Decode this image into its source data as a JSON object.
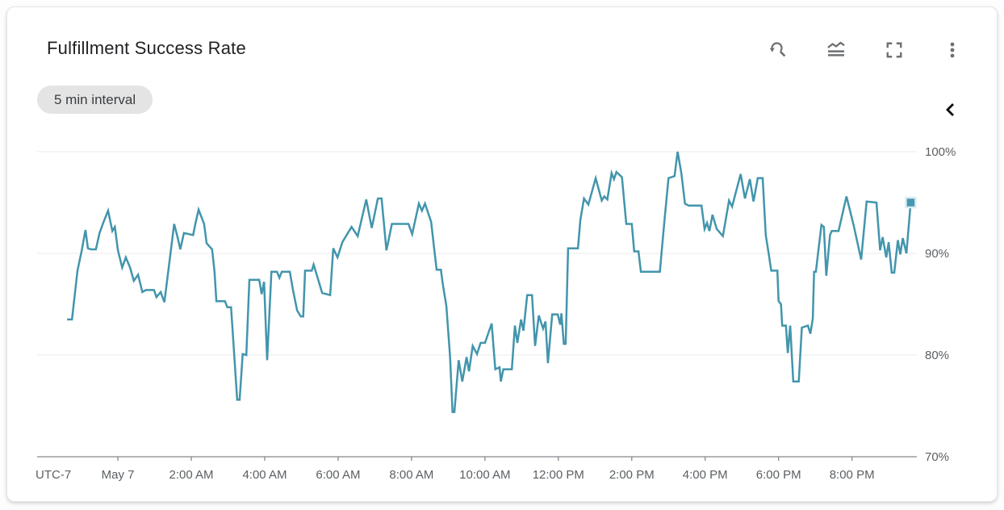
{
  "card": {
    "title": "Fulfillment Success Rate",
    "interval_badge": "5 min interval"
  },
  "toolbar": {
    "buttons": [
      {
        "name": "reset-zoom"
      },
      {
        "name": "legend-toggle"
      },
      {
        "name": "fullscreen"
      },
      {
        "name": "more-options"
      }
    ],
    "collapse_chevron": "chevron-left"
  },
  "chart_data": {
    "type": "line",
    "title": "Fulfillment Success Rate",
    "interval": "5 min",
    "grid": "horizontal",
    "legend_position": "none",
    "line_color": "#4295ac",
    "marker": {
      "shape": "square",
      "t_min": 1296,
      "value": 95.0,
      "fill": "#4499b0",
      "halo": "#d9ecf1"
    },
    "x_axis": {
      "prefix_label": "UTC-7",
      "unit": "minutes from May 7 00:00 (UTC-7)",
      "domain": [
        -132,
        1306
      ],
      "ticks": [
        {
          "t": 0,
          "label": "May 7"
        },
        {
          "t": 120,
          "label": "2:00 AM"
        },
        {
          "t": 240,
          "label": "4:00 AM"
        },
        {
          "t": 360,
          "label": "6:00 AM"
        },
        {
          "t": 480,
          "label": "8:00 AM"
        },
        {
          "t": 600,
          "label": "10:00 AM"
        },
        {
          "t": 720,
          "label": "12:00 PM"
        },
        {
          "t": 840,
          "label": "2:00 PM"
        },
        {
          "t": 960,
          "label": "4:00 PM"
        },
        {
          "t": 1080,
          "label": "6:00 PM"
        },
        {
          "t": 1200,
          "label": "8:00 PM"
        }
      ]
    },
    "y_axis": {
      "min": 70,
      "max": 100,
      "side": "right",
      "ticks": [
        {
          "v": 70,
          "label": "70%"
        },
        {
          "v": 80,
          "label": "80%"
        },
        {
          "v": 90,
          "label": "90%"
        },
        {
          "v": 100,
          "label": "100%"
        }
      ]
    },
    "points": [
      [
        -83,
        83.5
      ],
      [
        -75,
        83.5
      ],
      [
        -66,
        88.3
      ],
      [
        -59,
        90.3
      ],
      [
        -53,
        92.3
      ],
      [
        -49,
        90.5
      ],
      [
        -44,
        90.4
      ],
      [
        -36,
        90.4
      ],
      [
        -30,
        92
      ],
      [
        -24,
        93
      ],
      [
        -16,
        94.2
      ],
      [
        -9,
        92.2
      ],
      [
        -5,
        92.6
      ],
      [
        0,
        90.3
      ],
      [
        7,
        88.6
      ],
      [
        13,
        89.6
      ],
      [
        20,
        88.6
      ],
      [
        26,
        87.3
      ],
      [
        33,
        87.9
      ],
      [
        40,
        86.2
      ],
      [
        46,
        86.4
      ],
      [
        59,
        86.4
      ],
      [
        63,
        85.7
      ],
      [
        70,
        86.2
      ],
      [
        76,
        85.2
      ],
      [
        92,
        92.9
      ],
      [
        98,
        91.5
      ],
      [
        102,
        90.4
      ],
      [
        108,
        92
      ],
      [
        123,
        91.8
      ],
      [
        127,
        93
      ],
      [
        132,
        94.3
      ],
      [
        141,
        92.9
      ],
      [
        145,
        91
      ],
      [
        154,
        90.4
      ],
      [
        158,
        88.2
      ],
      [
        161,
        85.3
      ],
      [
        175,
        85.3
      ],
      [
        179,
        84.7
      ],
      [
        185,
        84.7
      ],
      [
        195,
        75.6
      ],
      [
        199,
        75.6
      ],
      [
        204,
        80.1
      ],
      [
        210,
        80
      ],
      [
        215,
        87.4
      ],
      [
        231,
        87.4
      ],
      [
        235,
        86
      ],
      [
        239,
        87.2
      ],
      [
        244,
        79.5
      ],
      [
        251,
        88.2
      ],
      [
        260,
        88.2
      ],
      [
        264,
        87.6
      ],
      [
        268,
        88.2
      ],
      [
        281,
        88.2
      ],
      [
        286,
        86.5
      ],
      [
        293,
        84.4
      ],
      [
        299,
        83.8
      ],
      [
        303,
        83.8
      ],
      [
        306,
        88.3
      ],
      [
        317,
        88.3
      ],
      [
        320,
        88.9
      ],
      [
        326,
        87.7
      ],
      [
        334,
        86.1
      ],
      [
        347,
        85.9
      ],
      [
        352,
        90.5
      ],
      [
        359,
        89.6
      ],
      [
        367,
        91.1
      ],
      [
        382,
        92.6
      ],
      [
        392,
        91.7
      ],
      [
        406,
        95.3
      ],
      [
        415,
        92.5
      ],
      [
        425,
        95.4
      ],
      [
        431,
        95.4
      ],
      [
        439,
        90.3
      ],
      [
        448,
        92.9
      ],
      [
        475,
        92.9
      ],
      [
        481,
        91.9
      ],
      [
        492,
        94.9
      ],
      [
        497,
        94.2
      ],
      [
        502,
        94.9
      ],
      [
        512,
        93.1
      ],
      [
        517,
        90.5
      ],
      [
        521,
        88.4
      ],
      [
        528,
        88.4
      ],
      [
        531,
        87
      ],
      [
        537,
        84.8
      ],
      [
        543,
        79.9
      ],
      [
        547,
        74.4
      ],
      [
        550,
        74.4
      ],
      [
        557,
        79.5
      ],
      [
        563,
        77.4
      ],
      [
        570,
        79.8
      ],
      [
        574,
        78.4
      ],
      [
        580,
        80.9
      ],
      [
        587,
        80.1
      ],
      [
        593,
        81.2
      ],
      [
        600,
        81.2
      ],
      [
        611,
        83.1
      ],
      [
        617,
        78.6
      ],
      [
        624,
        78.8
      ],
      [
        626,
        77.4
      ],
      [
        630,
        78.6
      ],
      [
        644,
        78.6
      ],
      [
        649,
        82.9
      ],
      [
        653,
        81.2
      ],
      [
        659,
        83.5
      ],
      [
        663,
        82.4
      ],
      [
        669,
        85.9
      ],
      [
        677,
        85.9
      ],
      [
        682,
        80.9
      ],
      [
        688,
        83.9
      ],
      [
        695,
        82.6
      ],
      [
        699,
        83.3
      ],
      [
        703,
        79.2
      ],
      [
        710,
        84
      ],
      [
        719,
        84
      ],
      [
        723,
        83
      ],
      [
        725,
        84.1
      ],
      [
        729,
        81.1
      ],
      [
        732,
        81.1
      ],
      [
        736,
        90.5
      ],
      [
        752,
        90.5
      ],
      [
        756,
        93.3
      ],
      [
        762,
        95.4
      ],
      [
        769,
        94.8
      ],
      [
        781,
        97.4
      ],
      [
        791,
        95.2
      ],
      [
        795,
        95.6
      ],
      [
        800,
        95.3
      ],
      [
        807,
        97.9
      ],
      [
        811,
        97.3
      ],
      [
        815,
        98
      ],
      [
        824,
        97.5
      ],
      [
        831,
        92.9
      ],
      [
        840,
        92.9
      ],
      [
        844,
        90.2
      ],
      [
        851,
        90.2
      ],
      [
        855,
        88.2
      ],
      [
        886,
        88.2
      ],
      [
        893,
        92.9
      ],
      [
        900,
        97.4
      ],
      [
        910,
        97.6
      ],
      [
        915,
        100
      ],
      [
        921,
        97.9
      ],
      [
        927,
        94.9
      ],
      [
        933,
        94.7
      ],
      [
        954,
        94.7
      ],
      [
        959,
        92.4
      ],
      [
        963,
        93
      ],
      [
        967,
        92.2
      ],
      [
        972,
        93.8
      ],
      [
        979,
        92.4
      ],
      [
        989,
        91.7
      ],
      [
        999,
        95.2
      ],
      [
        1004,
        94.6
      ],
      [
        1018,
        97.8
      ],
      [
        1025,
        95.4
      ],
      [
        1033,
        97.3
      ],
      [
        1039,
        95.1
      ],
      [
        1046,
        97.4
      ],
      [
        1054,
        97.4
      ],
      [
        1059,
        91.8
      ],
      [
        1064,
        89.9
      ],
      [
        1068,
        88.3
      ],
      [
        1078,
        88.3
      ],
      [
        1080,
        85.3
      ],
      [
        1084,
        85
      ],
      [
        1086,
        82.9
      ],
      [
        1092,
        82.9
      ],
      [
        1095,
        80.2
      ],
      [
        1099,
        82.9
      ],
      [
        1104,
        77.4
      ],
      [
        1113,
        77.4
      ],
      [
        1118,
        82.7
      ],
      [
        1128,
        82.9
      ],
      [
        1132,
        82.1
      ],
      [
        1136,
        83.6
      ],
      [
        1138,
        88.2
      ],
      [
        1141,
        88.2
      ],
      [
        1150,
        92.8
      ],
      [
        1154,
        92.6
      ],
      [
        1158,
        87.8
      ],
      [
        1164,
        91.8
      ],
      [
        1167,
        92.2
      ],
      [
        1178,
        92.2
      ],
      [
        1191,
        95.6
      ],
      [
        1196,
        94.4
      ],
      [
        1203,
        92.7
      ],
      [
        1215,
        89.4
      ],
      [
        1224,
        95.1
      ],
      [
        1240,
        95
      ],
      [
        1246,
        90.3
      ],
      [
        1250,
        91.6
      ],
      [
        1256,
        89.6
      ],
      [
        1260,
        91.1
      ],
      [
        1265,
        88.1
      ],
      [
        1269,
        88.1
      ],
      [
        1275,
        91.3
      ],
      [
        1279,
        89.9
      ],
      [
        1283,
        91.5
      ],
      [
        1289,
        90
      ],
      [
        1296,
        95
      ]
    ]
  }
}
